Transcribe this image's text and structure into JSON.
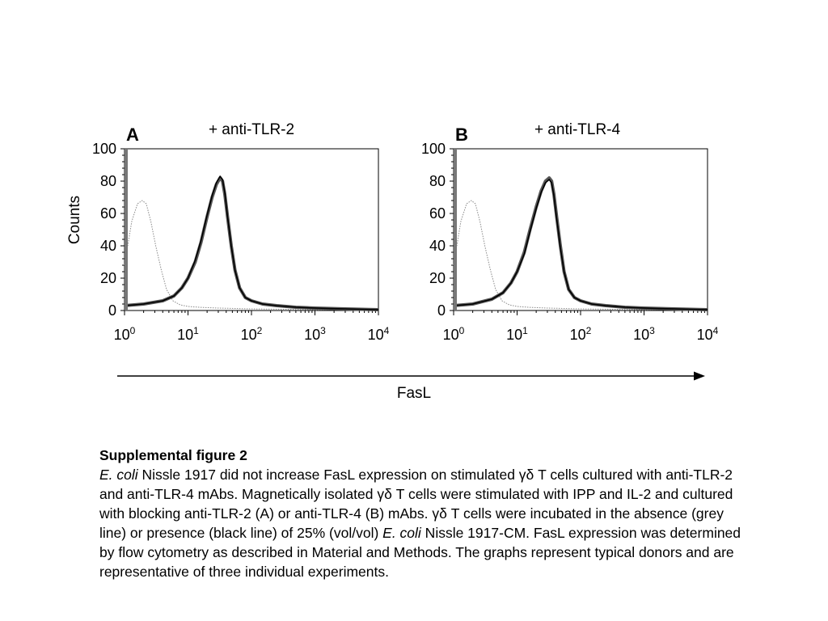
{
  "chart_data": [
    {
      "type": "line",
      "panel_label": "A",
      "title": "+ anti-TLR-2",
      "ylabel": "Counts",
      "xscale": "log",
      "xlim": [
        1,
        10000
      ],
      "ylim": [
        0,
        100
      ],
      "yticks": [
        "0",
        "20",
        "40",
        "60",
        "80",
        "100"
      ],
      "xticks": [
        [
          "10",
          "0"
        ],
        [
          "10",
          "1"
        ],
        [
          "10",
          "2"
        ],
        [
          "10",
          "3"
        ],
        [
          "10",
          "4"
        ]
      ],
      "series": [
        {
          "style": "dotted",
          "color": "#888888",
          "x": [
            1,
            1.3,
            1.6,
            1.9,
            2.2,
            2.6,
            3.1,
            3.8,
            4.6,
            5.8,
            7.5,
            10,
            15,
            30,
            100,
            1000,
            10000
          ],
          "y": [
            28,
            55,
            66,
            68,
            66,
            55,
            40,
            25,
            13,
            6,
            3.5,
            2.5,
            2,
            1.5,
            1,
            0.5,
            0.5
          ]
        },
        {
          "style": "solid",
          "color": "#555555",
          "x": [
            1,
            2,
            4,
            6,
            8,
            10,
            13,
            16,
            20,
            24,
            28,
            32,
            35,
            38,
            42,
            48,
            55,
            65,
            80,
            100,
            150,
            250,
            500,
            1000,
            3000,
            10000
          ],
          "y": [
            3,
            4,
            6,
            9,
            14,
            20,
            30,
            42,
            58,
            70,
            78,
            82,
            80,
            72,
            58,
            40,
            25,
            14,
            8,
            6,
            4,
            3,
            2,
            1.5,
            1,
            0.5
          ]
        },
        {
          "style": "solid",
          "color": "#000000",
          "x": [
            1,
            2,
            4,
            6,
            8,
            10,
            13,
            16,
            20,
            24,
            28,
            32,
            35,
            38,
            42,
            48,
            55,
            65,
            80,
            100,
            150,
            250,
            500,
            1000,
            3000,
            10000
          ],
          "y": [
            3,
            4,
            6,
            9,
            14,
            20,
            31,
            43,
            59,
            71,
            79,
            83,
            81,
            73,
            58,
            40,
            25,
            14,
            8,
            6,
            4,
            3,
            2,
            1.5,
            1,
            0.5
          ]
        }
      ]
    },
    {
      "type": "line",
      "panel_label": "B",
      "title": "+ anti-TLR-4",
      "ylabel": "",
      "xscale": "log",
      "xlim": [
        1,
        10000
      ],
      "ylim": [
        0,
        100
      ],
      "yticks": [
        "0",
        "20",
        "40",
        "60",
        "80",
        "100"
      ],
      "xticks": [
        [
          "10",
          "0"
        ],
        [
          "10",
          "1"
        ],
        [
          "10",
          "2"
        ],
        [
          "10",
          "3"
        ],
        [
          "10",
          "4"
        ]
      ],
      "series": [
        {
          "style": "dotted",
          "color": "#888888",
          "x": [
            1,
            1.3,
            1.6,
            1.9,
            2.2,
            2.6,
            3.1,
            3.8,
            4.6,
            5.8,
            7.5,
            10,
            15,
            30,
            100,
            1000,
            10000
          ],
          "y": [
            28,
            55,
            66,
            68,
            66,
            55,
            40,
            25,
            13,
            6,
            3.5,
            2.5,
            2,
            1.5,
            1,
            0.5,
            0.5
          ]
        },
        {
          "style": "solid",
          "color": "#555555",
          "x": [
            1,
            2,
            4,
            6,
            8,
            10,
            13,
            16,
            20,
            24,
            28,
            32,
            35,
            38,
            42,
            48,
            55,
            65,
            80,
            100,
            150,
            250,
            500,
            1000,
            3000,
            10000
          ],
          "y": [
            3,
            4,
            7,
            11,
            17,
            24,
            36,
            50,
            64,
            74,
            80,
            82,
            80,
            72,
            58,
            40,
            24,
            13,
            8,
            6,
            4,
            3,
            2,
            1.5,
            1,
            0.5
          ]
        },
        {
          "style": "solid",
          "color": "#000000",
          "x": [
            1,
            2,
            4,
            6,
            8,
            10,
            13,
            16,
            20,
            24,
            28,
            32,
            35,
            38,
            42,
            48,
            55,
            65,
            80,
            100,
            150,
            250,
            500,
            1000,
            3000,
            10000
          ],
          "y": [
            3,
            4,
            7,
            11,
            17,
            24,
            35,
            49,
            63,
            73,
            79,
            81,
            79,
            71,
            57,
            39,
            24,
            13,
            8,
            6,
            4,
            3,
            2,
            1.5,
            1,
            0.5
          ]
        }
      ]
    }
  ],
  "shared_xlabel": "FasL",
  "caption": {
    "title": "Supplemental figure 2",
    "line1_italic": "E. coli",
    "line1_rest": " Nissle 1917 did not increase FasL expression on stimulated γδ T cells cultured with anti-TLR-2 and anti-TLR-4 mAbs. Magnetically isolated γδ T cells were stimulated with IPP and IL-2 and cultured with blocking anti-TLR-2 (A) or anti-TLR-4 (B) mAbs. γδ T cells were incubated in the absence (grey line) or presence (black line) of 25% (vol/vol) ",
    "line2_italic": "E. coli",
    "line2_rest": " Nissle 1917-CM. FasL expression was determined by flow cytometry as described in Material and Methods. The graphs represent typical donors and are representative of three individual experiments."
  }
}
